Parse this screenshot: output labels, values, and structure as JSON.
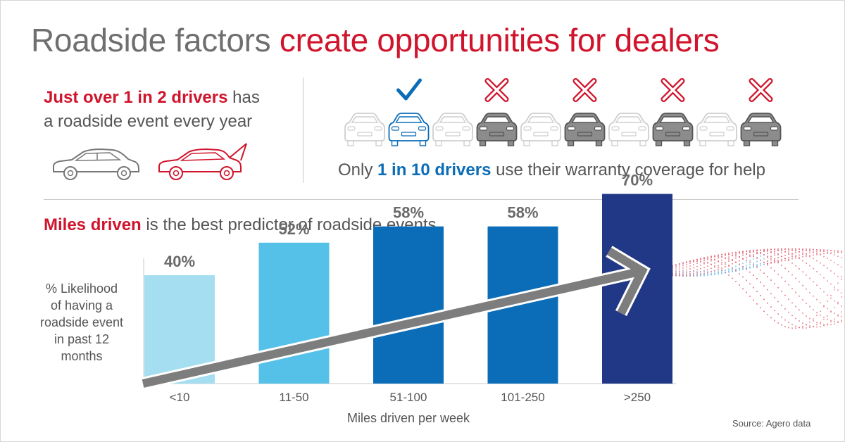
{
  "title": {
    "part1": "Roadside factors ",
    "part2": "create opportunities for dealers"
  },
  "left_stat": {
    "highlight": "Just over 1 in 2 drivers",
    "rest1": " has",
    "line2": "a roadside event every year"
  },
  "warranty": {
    "pre": "Only ",
    "highlight": "1 in 10 drivers",
    "post": " use their warranty coverage for help"
  },
  "car_row": {
    "markers": [
      "check",
      "x",
      "x",
      "x",
      "x"
    ],
    "colors": {
      "check": "#0b6db7",
      "x": "#d0142c",
      "light_car": "#cfcfcf",
      "dark_car": "#8c8c8c",
      "highlight_car": "#0b6db7"
    }
  },
  "miles_heading": {
    "highlight": "Miles driven",
    "rest": " is the best predictor of roadside events"
  },
  "chart_data": {
    "type": "bar",
    "categories": [
      "<10",
      "11-50",
      "51-100",
      "101-250",
      ">250"
    ],
    "values": [
      40,
      52,
      58,
      58,
      70
    ],
    "data_labels": [
      "40%",
      "52%",
      "58%",
      "58%",
      "70%"
    ],
    "colors": [
      "#a6def1",
      "#56c1e8",
      "#0b6db7",
      "#0b6db7",
      "#213886"
    ],
    "ylabel": "% Likelihood of having a roadside event in past 12 months",
    "xlabel": "Miles driven per week",
    "grid": false,
    "trend_arrow": true
  },
  "source": "Source: Agero data"
}
